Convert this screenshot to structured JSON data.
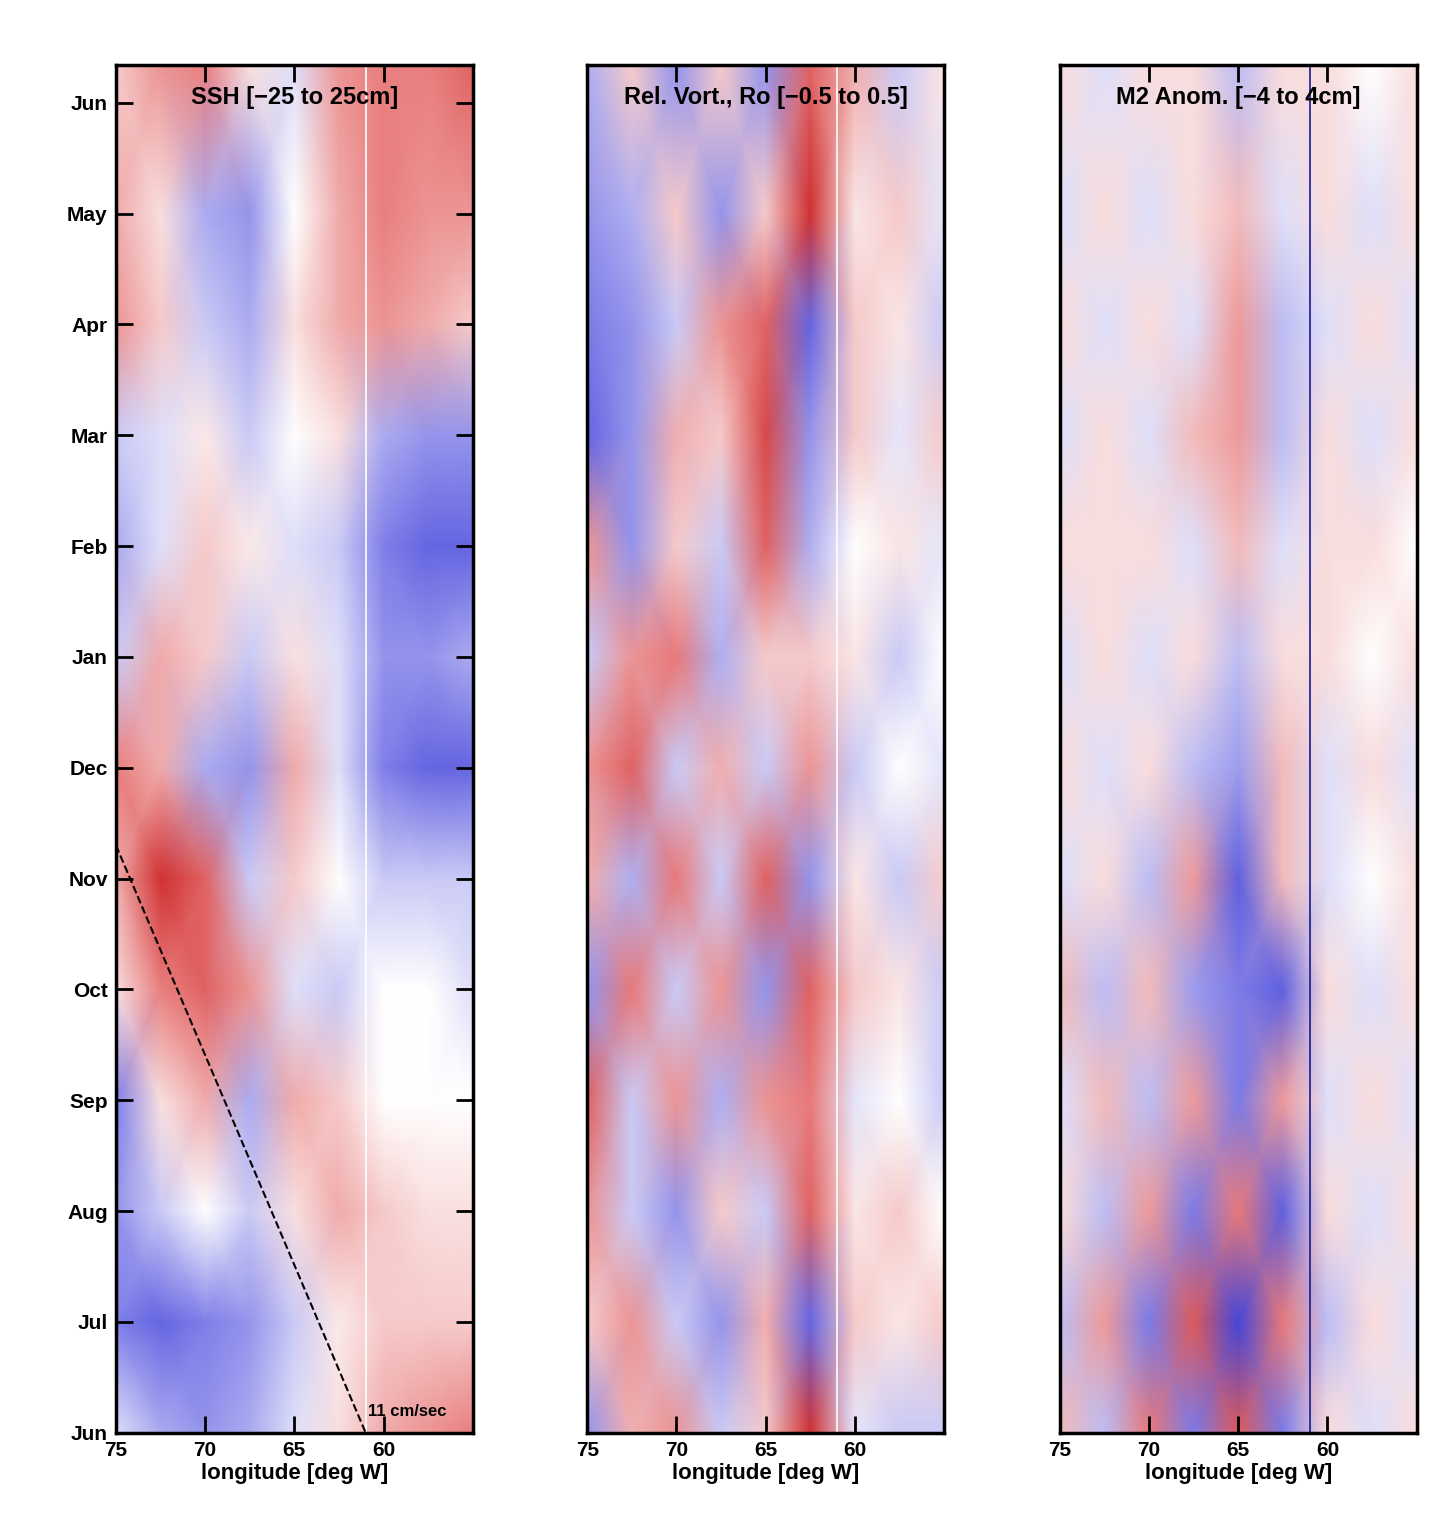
{
  "chart_data": [
    {
      "type": "heatmap",
      "title": "SSH [−25 to 25cm]",
      "x_label": "longitude [deg W]",
      "xlim": [
        75,
        55
      ],
      "xticks": [
        75,
        70,
        65,
        60
      ],
      "ylim": [
        0,
        12.34
      ],
      "yticks": [
        {
          "value": 0,
          "label": "Jun"
        },
        {
          "value": 1,
          "label": "Jul"
        },
        {
          "value": 2,
          "label": "Aug"
        },
        {
          "value": 3,
          "label": "Sep"
        },
        {
          "value": 4,
          "label": "Oct"
        },
        {
          "value": 5,
          "label": "Nov"
        },
        {
          "value": 6,
          "label": "Dec"
        },
        {
          "value": 7,
          "label": "Jan"
        },
        {
          "value": 8,
          "label": "Feb"
        },
        {
          "value": 9,
          "label": "Mar"
        },
        {
          "value": 10,
          "label": "Apr"
        },
        {
          "value": 11,
          "label": "May"
        },
        {
          "value": 12,
          "label": "Jun"
        }
      ],
      "tick_labels": true,
      "color_range": [
        -25,
        25
      ],
      "x": [
        75,
        72.5,
        70,
        67.5,
        65,
        62.5,
        60,
        57.5,
        55
      ],
      "y": [
        0,
        1,
        2,
        3,
        4,
        5,
        6,
        7,
        8,
        9,
        10,
        11,
        12.34
      ],
      "cells": [
        [
          -3,
          -8,
          -10,
          -8,
          -3,
          3,
          8,
          10,
          12
        ],
        [
          -12,
          -15,
          -12,
          -10,
          -5,
          2,
          5,
          5,
          5
        ],
        [
          -10,
          -5,
          0,
          -5,
          3,
          8,
          5,
          3,
          3
        ],
        [
          -12,
          3,
          8,
          -8,
          8,
          5,
          0,
          0,
          0
        ],
        [
          3,
          12,
          15,
          10,
          -3,
          -5,
          0,
          0,
          -3
        ],
        [
          8,
          20,
          15,
          -5,
          5,
          0,
          -5,
          -5,
          -5
        ],
        [
          12,
          8,
          -8,
          -10,
          8,
          -3,
          -12,
          -15,
          -15
        ],
        [
          -5,
          8,
          5,
          -5,
          3,
          -3,
          -10,
          -10,
          -8
        ],
        [
          -8,
          -3,
          5,
          2,
          -3,
          -5,
          -12,
          -15,
          -15
        ],
        [
          -5,
          -3,
          2,
          -5,
          0,
          3,
          -8,
          -10,
          -10
        ],
        [
          10,
          5,
          -5,
          -8,
          3,
          8,
          10,
          8,
          5
        ],
        [
          8,
          3,
          -8,
          -10,
          0,
          8,
          12,
          10,
          10
        ],
        [
          5,
          10,
          12,
          3,
          -3,
          10,
          12,
          12,
          15
        ]
      ],
      "reference_line_x": 61,
      "reference_line_color": "#ffffff",
      "annotations": [
        {
          "text": "11 cm/sec",
          "x": [
            75,
            61
          ],
          "y": [
            5.3,
            0
          ],
          "line_style": "dashed",
          "color": "#000000"
        }
      ]
    },
    {
      "type": "heatmap",
      "title": "Rel. Vort., Ro [−0.5 to 0.5]",
      "x_label": "longitude [deg W]",
      "xlim": [
        75,
        55
      ],
      "xticks": [
        75,
        70,
        65,
        60
      ],
      "ylim": [
        0,
        12.34
      ],
      "tick_labels": "x",
      "color_range": [
        -0.5,
        0.5
      ],
      "x": [
        75,
        72.5,
        70,
        67.5,
        65,
        62.5,
        60,
        57.5,
        55
      ],
      "y": [
        0,
        1,
        2,
        3,
        4,
        5,
        6,
        7,
        8,
        9,
        10,
        11,
        12.34
      ],
      "cells": [
        [
          -0.2,
          0.15,
          0.2,
          -0.1,
          0.1,
          0.4,
          -0.05,
          -0.1,
          -0.1
        ],
        [
          0.1,
          0.2,
          -0.1,
          -0.2,
          0.15,
          -0.3,
          0.1,
          0.05,
          0.1
        ],
        [
          0.2,
          -0.1,
          -0.2,
          0.1,
          -0.1,
          0.3,
          0.05,
          0.1,
          0.0
        ],
        [
          0.3,
          -0.1,
          0.2,
          -0.15,
          0.2,
          0.25,
          -0.05,
          0.0,
          -0.1
        ],
        [
          -0.2,
          0.25,
          -0.1,
          0.2,
          -0.2,
          0.3,
          0.1,
          0.05,
          -0.1
        ],
        [
          0.15,
          -0.15,
          0.25,
          -0.1,
          0.3,
          -0.2,
          0.05,
          -0.1,
          0.1
        ],
        [
          0.2,
          0.3,
          -0.1,
          0.15,
          -0.1,
          0.2,
          -0.1,
          0.0,
          -0.05
        ],
        [
          -0.1,
          0.2,
          0.25,
          -0.15,
          0.1,
          0.1,
          0.05,
          -0.1,
          0.0
        ],
        [
          0.2,
          -0.2,
          0.1,
          -0.1,
          0.3,
          -0.15,
          0.0,
          0.05,
          -0.05
        ],
        [
          -0.3,
          -0.2,
          0.15,
          0.1,
          0.35,
          -0.2,
          0.1,
          -0.05,
          0.1
        ],
        [
          -0.25,
          -0.2,
          -0.1,
          0.2,
          0.3,
          -0.3,
          0.1,
          0.05,
          -0.1
        ],
        [
          -0.2,
          -0.15,
          0.1,
          -0.2,
          0.1,
          0.4,
          0.05,
          0.1,
          -0.05
        ],
        [
          -0.15,
          0.1,
          -0.2,
          0.1,
          -0.2,
          0.3,
          0.15,
          -0.1,
          0.05
        ]
      ],
      "reference_line_x": 61,
      "reference_line_color": "#ffffff"
    },
    {
      "type": "heatmap",
      "title": "M2 Anom. [−4 to 4cm]",
      "x_label": "longitude [deg W]",
      "xlim": [
        75,
        55
      ],
      "xticks": [
        75,
        70,
        65,
        60
      ],
      "ylim": [
        0,
        12.34
      ],
      "tick_labels": "x",
      "color_range": [
        -4,
        4
      ],
      "x": [
        75,
        72.5,
        70,
        67.5,
        65,
        62.5,
        60,
        57.5,
        55
      ],
      "y": [
        0,
        1,
        2,
        3,
        4,
        5,
        6,
        7,
        8,
        9,
        10,
        11,
        12.34
      ],
      "cells": [
        [
          1,
          -1,
          2,
          -2,
          2.5,
          -2,
          0.5,
          -0.5,
          0.5
        ],
        [
          -1,
          1.5,
          -2,
          2.5,
          -3,
          2,
          -1,
          0.5,
          -0.5
        ],
        [
          0.5,
          -1,
          1.5,
          -2,
          2,
          -2.5,
          0.5,
          -0.5,
          0.5
        ],
        [
          -0.5,
          1,
          -1,
          1.5,
          -2,
          1.5,
          -0.5,
          0.5,
          -0.5
        ],
        [
          1,
          -1,
          1,
          -1.5,
          -2,
          -2.5,
          0.5,
          -0.5,
          0.5
        ],
        [
          -0.5,
          0.5,
          -1,
          1.5,
          -2.5,
          1,
          -0.5,
          0,
          0.5
        ],
        [
          0.5,
          -0.5,
          0.5,
          -1,
          -1.5,
          1,
          -0.5,
          0.5,
          -0.5
        ],
        [
          -0.5,
          0.5,
          -0.5,
          0.5,
          -1,
          0.5,
          0.5,
          0,
          0.5
        ],
        [
          0.5,
          0.5,
          0.5,
          -0.5,
          1,
          -0.5,
          0.5,
          0.5,
          0
        ],
        [
          -0.5,
          0.5,
          -0.5,
          1,
          1.5,
          -1,
          0.5,
          -0.5,
          0.5
        ],
        [
          0.5,
          -0.5,
          0.5,
          -0.5,
          1.5,
          -1,
          -0.5,
          0.5,
          -0.5
        ],
        [
          -0.5,
          0.5,
          -0.5,
          0.5,
          1,
          -0.5,
          0.5,
          -0.5,
          0.5
        ],
        [
          0.5,
          -0.5,
          0.5,
          0.5,
          -1,
          0.5,
          0.5,
          0,
          0.5
        ]
      ],
      "reference_line_x": 61,
      "reference_line_color": "#1a1a8c"
    }
  ]
}
